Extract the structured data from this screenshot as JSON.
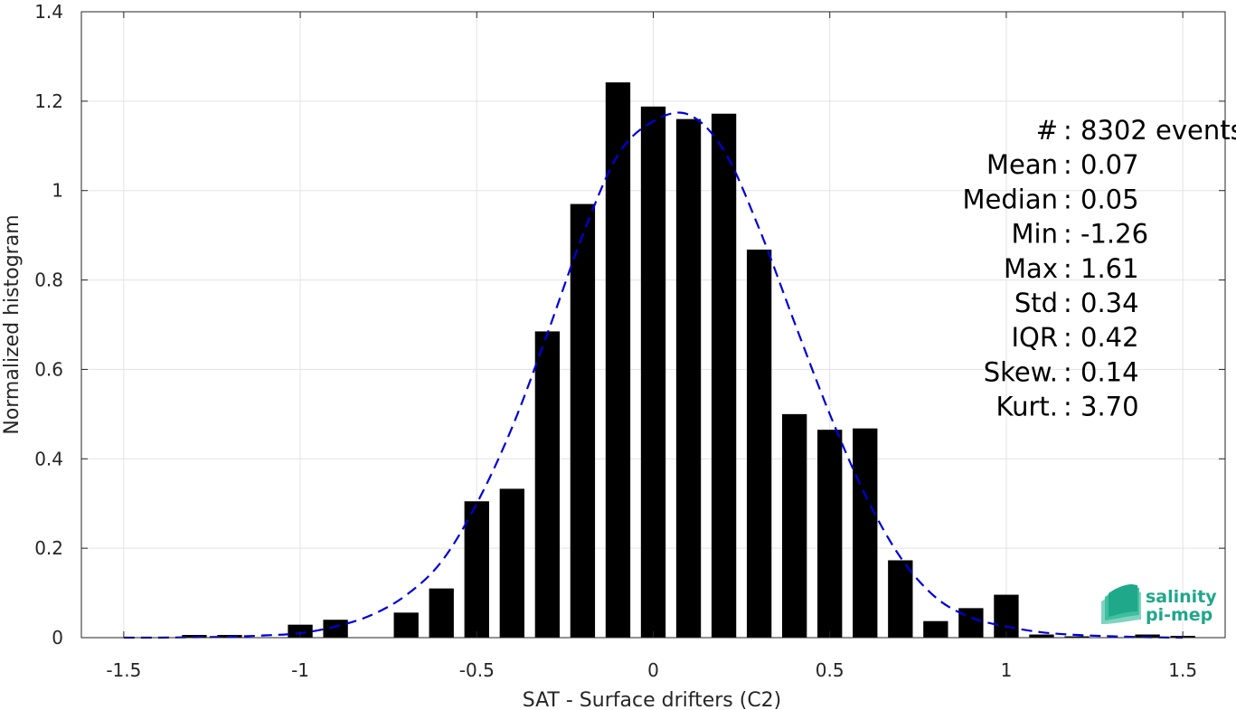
{
  "chart_data": {
    "type": "bar",
    "xlabel": "SAT - Surface drifters (C2)",
    "ylabel": "Normalized histogram",
    "xlim": [
      -1.62,
      1.62
    ],
    "ylim": [
      0,
      1.4
    ],
    "x_ticks": [
      -1.5,
      -1,
      -0.5,
      0,
      0.5,
      1,
      1.5
    ],
    "x_tick_labels": [
      "-1.5",
      "-1",
      "-0.5",
      "0",
      "0.5",
      "1",
      "1.5"
    ],
    "y_ticks": [
      0,
      0.2,
      0.4,
      0.6,
      0.8,
      1,
      1.2,
      1.4
    ],
    "y_tick_labels": [
      "0",
      "0.2",
      "0.4",
      "0.6",
      "0.8",
      "1",
      "1.2",
      "1.4"
    ],
    "grid": true,
    "bar_width": 0.07,
    "bar_color": "#000000",
    "series": [
      {
        "type": "bar",
        "x": [
          -1.5,
          -1.4,
          -1.3,
          -1.2,
          -1.1,
          -1.0,
          -0.9,
          -0.8,
          -0.7,
          -0.6,
          -0.5,
          -0.4,
          -0.3,
          -0.2,
          -0.1,
          0.0,
          0.1,
          0.2,
          0.3,
          0.4,
          0.5,
          0.6,
          0.7,
          0.8,
          0.9,
          1.0,
          1.1,
          1.2,
          1.3,
          1.4,
          1.5
        ],
        "values": [
          0,
          0,
          0.006,
          0.006,
          0,
          0.029,
          0.04,
          0,
          0.056,
          0.11,
          0.305,
          0.333,
          0.685,
          0.97,
          1.242,
          1.188,
          1.16,
          1.172,
          0.868,
          0.5,
          0.465,
          0.468,
          0.173,
          0.037,
          0.066,
          0.096,
          0.007,
          0.003,
          0,
          0.007,
          0.004
        ]
      },
      {
        "type": "line",
        "style": "dashed",
        "color": "#0000dd",
        "x": [
          -1.5,
          -1.4,
          -1.3,
          -1.2,
          -1.1,
          -1.0,
          -0.9,
          -0.8,
          -0.7,
          -0.6,
          -0.5,
          -0.4,
          -0.3,
          -0.2,
          -0.1,
          0.0,
          0.1,
          0.2,
          0.3,
          0.4,
          0.5,
          0.6,
          0.7,
          0.8,
          0.9,
          1.0,
          1.1,
          1.2,
          1.3,
          1.4,
          1.5
        ],
        "values": [
          0.0,
          0.0,
          0.001,
          0.002,
          0.005,
          0.01,
          0.025,
          0.05,
          0.095,
          0.17,
          0.3,
          0.47,
          0.68,
          0.9,
          1.08,
          1.155,
          1.17,
          1.09,
          0.915,
          0.705,
          0.5,
          0.32,
          0.18,
          0.09,
          0.045,
          0.025,
          0.012,
          0.006,
          0.003,
          0.001,
          0.0
        ]
      }
    ],
    "stats": [
      "#  : 8302 events",
      "Mean : 0.07",
      "Median : 0.05",
      "Min : -1.26",
      "Max : 1.61",
      "Std : 0.34",
      "IQR : 0.42",
      "Skew. : 0.14",
      "Kurt. : 3.70"
    ],
    "logo": {
      "line1": "salinity",
      "line2": "pi-mep",
      "color": "#1fa88a"
    }
  }
}
